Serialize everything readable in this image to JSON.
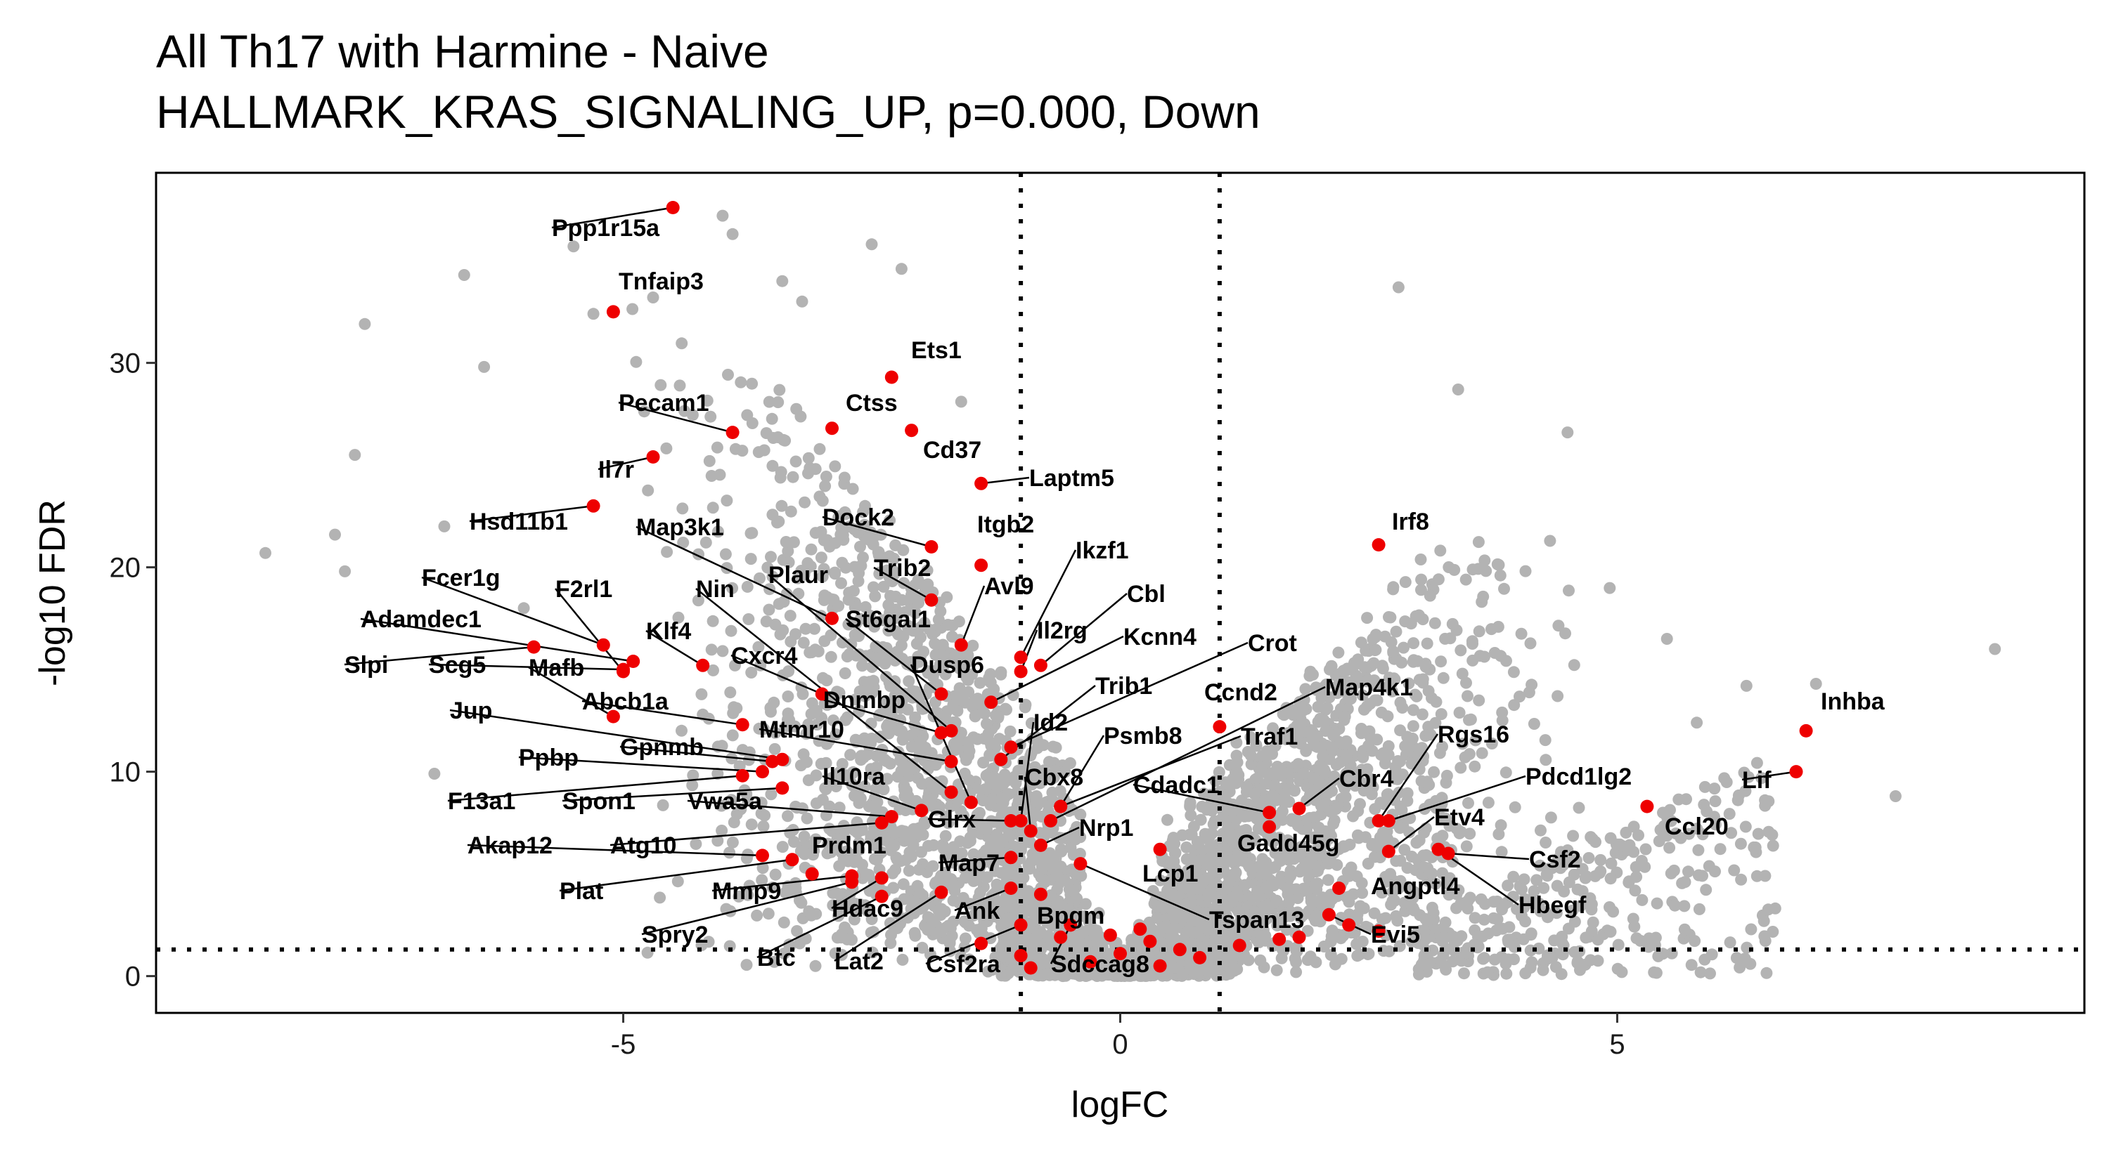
{
  "chart_data": {
    "type": "scatter",
    "title": "All Th17 with Harmine - Naive",
    "subtitle": "HALLMARK_KRAS_SIGNALING_UP, p=0.000, Down",
    "xlabel": "logFC",
    "ylabel": "-log10 FDR",
    "xlim": [
      -9.7,
      9.7
    ],
    "ylim": [
      -1.8,
      39.3
    ],
    "xticks": [
      -5,
      0,
      5
    ],
    "yticks": [
      0,
      10,
      20,
      30
    ],
    "grid": false,
    "legend": "none",
    "thresholds": {
      "logfc": [
        -1,
        1
      ],
      "fdr_log": 1.3
    },
    "colors": {
      "background_genes": "#b3b3b3",
      "highlight_genes": "#ee0000",
      "lines": "#000000"
    },
    "background_cloud_note_points": [
      [
        -8.6,
        20.7
      ],
      [
        -7.9,
        21.6
      ],
      [
        -7.7,
        25.5
      ],
      [
        -7.8,
        19.8
      ],
      [
        -7.6,
        31.9
      ],
      [
        -6.6,
        34.3
      ],
      [
        -6.4,
        29.8
      ],
      [
        -6.8,
        22.0
      ],
      [
        -6.9,
        9.9
      ],
      [
        -6.0,
        18.0
      ],
      [
        -5.5,
        35.7
      ],
      [
        -5.3,
        32.4
      ],
      [
        -4.7,
        33.2
      ],
      [
        -4.0,
        37.2
      ],
      [
        -3.9,
        36.3
      ],
      [
        -3.4,
        34.0
      ],
      [
        -3.2,
        33.0
      ],
      [
        -2.5,
        35.8
      ],
      [
        -2.2,
        34.6
      ],
      [
        -1.6,
        28.1
      ],
      [
        2.8,
        33.7
      ],
      [
        3.4,
        28.7
      ],
      [
        4.5,
        26.6
      ],
      [
        5.5,
        16.5
      ],
      [
        6.3,
        14.2
      ],
      [
        7.0,
        14.3
      ],
      [
        8.8,
        16.0
      ],
      [
        7.8,
        8.8
      ],
      [
        5.8,
        12.4
      ],
      [
        4.4,
        13.7
      ]
    ],
    "highlighted_genes": [
      {
        "gene": "Ppp1r15a",
        "x": -4.5,
        "y": 37.6
      },
      {
        "gene": "Tnfaip3",
        "x": -5.1,
        "y": 32.5
      },
      {
        "gene": "Ets1",
        "x": -2.3,
        "y": 29.3
      },
      {
        "gene": "Pecam1",
        "x": -3.9,
        "y": 26.6
      },
      {
        "gene": "Ctss",
        "x": -2.9,
        "y": 26.8
      },
      {
        "gene": "Cd37",
        "x": -2.1,
        "y": 26.7
      },
      {
        "gene": "Il7r",
        "x": -4.7,
        "y": 25.4
      },
      {
        "gene": "Laptm5",
        "x": -1.4,
        "y": 24.1
      },
      {
        "gene": "Hsd11b1",
        "x": -5.3,
        "y": 23.0
      },
      {
        "gene": "Irf8",
        "x": 2.6,
        "y": 21.1
      },
      {
        "gene": "Dock2",
        "x": -1.9,
        "y": 21.0
      },
      {
        "gene": "Itgb2",
        "x": -1.4,
        "y": 20.1
      },
      {
        "gene": "Map3k1",
        "x": -2.9,
        "y": 17.5
      },
      {
        "gene": "Trib2",
        "x": -1.9,
        "y": 18.4
      },
      {
        "gene": "Plaur",
        "x": -1.7,
        "y": 12.0
      },
      {
        "gene": "Ikzf1",
        "x": -1.0,
        "y": 15.6
      },
      {
        "gene": "Avl9",
        "x": -1.6,
        "y": 16.2
      },
      {
        "gene": "Fcer1g",
        "x": -5.2,
        "y": 16.2
      },
      {
        "gene": "F2rl1",
        "x": -5.0,
        "y": 14.9
      },
      {
        "gene": "Nin",
        "x": -1.7,
        "y": 9.0
      },
      {
        "gene": "St6gal1",
        "x": -1.8,
        "y": 13.8
      },
      {
        "gene": "Cbl",
        "x": -0.8,
        "y": 15.2
      },
      {
        "gene": "Adamdec1",
        "x": -4.9,
        "y": 15.4
      },
      {
        "gene": "Klf4",
        "x": -4.2,
        "y": 15.2
      },
      {
        "gene": "Il2rg",
        "x": -1.0,
        "y": 14.9
      },
      {
        "gene": "Kcnn4",
        "x": -1.3,
        "y": 13.4
      },
      {
        "gene": "Crot",
        "x": -1.1,
        "y": 11.2
      },
      {
        "gene": "Slpi",
        "x": -5.9,
        "y": 16.1
      },
      {
        "gene": "Scg5",
        "x": -5.0,
        "y": 15.0
      },
      {
        "gene": "Mafb",
        "x": -5.1,
        "y": 12.7
      },
      {
        "gene": "Cxcr4",
        "x": -3.0,
        "y": 13.8
      },
      {
        "gene": "Dusp6",
        "x": -1.5,
        "y": 8.5
      },
      {
        "gene": "Trib1",
        "x": -1.2,
        "y": 10.6
      },
      {
        "gene": "Ccnd2",
        "x": 1.0,
        "y": 12.2
      },
      {
        "gene": "Map4k1",
        "x": -0.7,
        "y": 7.6
      },
      {
        "gene": "Abcb1a",
        "x": -3.8,
        "y": 12.3
      },
      {
        "gene": "Dnmbp",
        "x": -1.8,
        "y": 11.9
      },
      {
        "gene": "Jup",
        "x": -3.4,
        "y": 10.6
      },
      {
        "gene": "Id2",
        "x": -1.0,
        "y": 7.6
      },
      {
        "gene": "Traf1",
        "x": -0.6,
        "y": 8.3
      },
      {
        "gene": "Rgs16",
        "x": 2.6,
        "y": 7.6
      },
      {
        "gene": "Psmb8",
        "x": -0.6,
        "y": 8.3
      },
      {
        "gene": "Mtmr10",
        "x": -1.7,
        "y": 10.5
      },
      {
        "gene": "Gpnmb",
        "x": -3.5,
        "y": 10.5
      },
      {
        "gene": "Ppbp",
        "x": -3.6,
        "y": 10.0
      },
      {
        "gene": "Cbr4",
        "x": 1.8,
        "y": 8.2
      },
      {
        "gene": "Pdcd1lg2",
        "x": 2.7,
        "y": 7.6
      },
      {
        "gene": "Lif",
        "x": 6.8,
        "y": 10.0
      },
      {
        "gene": "Inhba",
        "x": 6.9,
        "y": 12.0
      },
      {
        "gene": "Cbx8",
        "x": -0.9,
        "y": 7.1
      },
      {
        "gene": "Cdadc1",
        "x": 1.5,
        "y": 8.0
      },
      {
        "gene": "Il10ra",
        "x": -2.0,
        "y": 8.1
      },
      {
        "gene": "F13a1",
        "x": -3.8,
        "y": 9.8
      },
      {
        "gene": "Spon1",
        "x": -3.4,
        "y": 9.2
      },
      {
        "gene": "Vwa5a",
        "x": -2.3,
        "y": 7.8
      },
      {
        "gene": "Glrx",
        "x": -1.1,
        "y": 7.6
      },
      {
        "gene": "Etv4",
        "x": 2.7,
        "y": 6.1
      },
      {
        "gene": "Ccl20",
        "x": 5.3,
        "y": 8.3
      },
      {
        "gene": "Nrp1",
        "x": -0.8,
        "y": 6.4
      },
      {
        "gene": "Gadd45g",
        "x": 1.5,
        "y": 7.3
      },
      {
        "gene": "Akap12",
        "x": -3.6,
        "y": 5.9
      },
      {
        "gene": "Atg10",
        "x": -2.4,
        "y": 7.5
      },
      {
        "gene": "Prdm1",
        "x": -3.1,
        "y": 5.0
      },
      {
        "gene": "Csf2",
        "x": 3.3,
        "y": 6.0
      },
      {
        "gene": "Angptl4",
        "x": 2.2,
        "y": 4.3
      },
      {
        "gene": "Hbegf",
        "x": 3.2,
        "y": 6.2
      },
      {
        "gene": "Map7",
        "x": -1.1,
        "y": 5.8
      },
      {
        "gene": "Lcp1",
        "x": 0.4,
        "y": 6.2
      },
      {
        "gene": "Plat",
        "x": -3.3,
        "y": 5.7
      },
      {
        "gene": "Mmp9",
        "x": -2.7,
        "y": 4.9
      },
      {
        "gene": "Hdac9",
        "x": -2.4,
        "y": 4.8
      },
      {
        "gene": "Ank",
        "x": -1.1,
        "y": 4.3
      },
      {
        "gene": "Tspan13",
        "x": -0.4,
        "y": 5.5
      },
      {
        "gene": "Evi5",
        "x": 2.1,
        "y": 3.0
      },
      {
        "gene": "Spry2",
        "x": -2.7,
        "y": 4.6
      },
      {
        "gene": "Lat2",
        "x": -1.8,
        "y": 4.1
      },
      {
        "gene": "Bpgm",
        "x": -0.8,
        "y": 4.0
      },
      {
        "gene": "Btc",
        "x": -2.4,
        "y": 3.9
      },
      {
        "gene": "Csf2ra",
        "x": -1.0,
        "y": 2.5
      },
      {
        "gene": "Sdccag8",
        "x": -0.5,
        "y": 2.5
      }
    ],
    "unlabeled_highlights": [
      [
        -1.0,
        1.0
      ],
      [
        -0.6,
        1.9
      ],
      [
        -0.3,
        0.7
      ],
      [
        0.0,
        1.1
      ],
      [
        0.2,
        2.3
      ],
      [
        0.4,
        0.5
      ],
      [
        0.6,
        1.3
      ],
      [
        -0.1,
        2.0
      ],
      [
        0.3,
        1.7
      ],
      [
        1.2,
        1.5
      ],
      [
        1.6,
        1.8
      ],
      [
        1.8,
        1.9
      ],
      [
        2.3,
        2.5
      ],
      [
        2.6,
        2.2
      ],
      [
        0.8,
        0.9
      ],
      [
        -1.4,
        1.6
      ],
      [
        -0.9,
        0.4
      ]
    ]
  }
}
